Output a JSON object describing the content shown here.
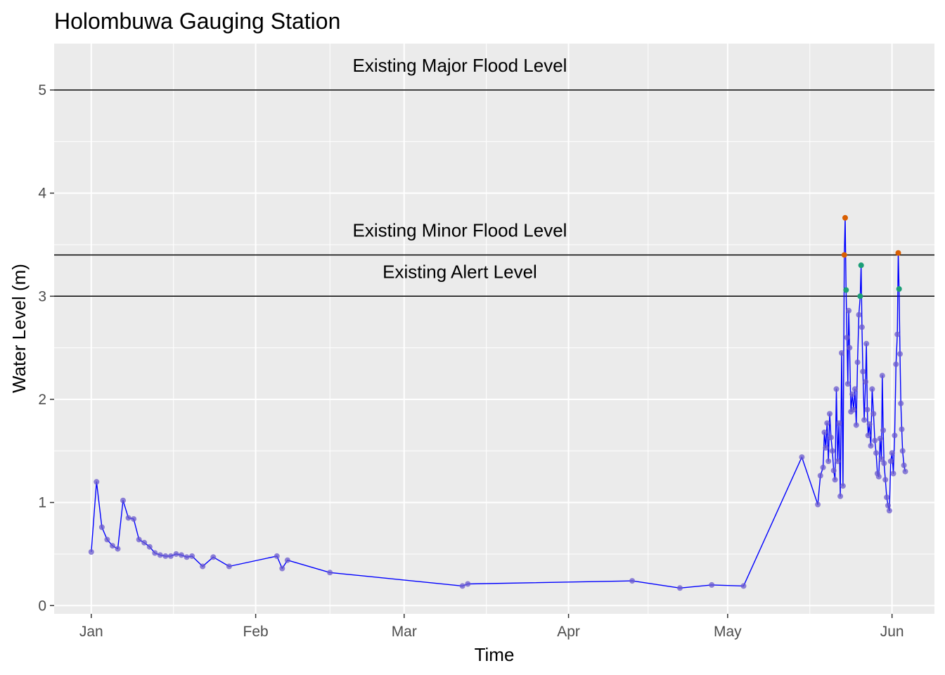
{
  "chart_data": {
    "type": "line",
    "title": "Holombuwa Gauging Station",
    "xlabel": "Time",
    "ylabel": "Water Level (m)",
    "x_ticks": [
      "Jan",
      "Feb",
      "Mar",
      "Apr",
      "May",
      "Jun"
    ],
    "x_tick_dates": [
      "2021-01-01",
      "2021-02-01",
      "2021-03-01",
      "2021-04-01",
      "2021-05-01",
      "2021-06-01"
    ],
    "xlim": [
      "2020-12-25",
      "2021-06-09"
    ],
    "y_ticks": [
      0,
      1,
      2,
      3,
      4,
      5
    ],
    "ylim": [
      -0.08,
      5.45
    ],
    "grid": true,
    "background": "#ebebeb",
    "line_color": "#0000ff",
    "point_color": "#6a5acd",
    "reference_lines": [
      {
        "label": "Existing Major Flood Level",
        "y": 5.0
      },
      {
        "label": "Existing Minor Flood Level",
        "y": 3.4
      },
      {
        "label": "Existing Alert Level",
        "y": 3.0
      }
    ],
    "highlight_colors": {
      "above_minor": "#d95f02",
      "above_alert": "#1b9e77"
    },
    "series": [
      {
        "points": [
          [
            "2021-01-01",
            0.52
          ],
          [
            "2021-01-02",
            1.2
          ],
          [
            "2021-01-03",
            0.76
          ],
          [
            "2021-01-04",
            0.64
          ],
          [
            "2021-01-05",
            0.58
          ],
          [
            "2021-01-06",
            0.55
          ],
          [
            "2021-01-07",
            1.02
          ],
          [
            "2021-01-08",
            0.85
          ],
          [
            "2021-01-09",
            0.84
          ],
          [
            "2021-01-10",
            0.64
          ],
          [
            "2021-01-11",
            0.61
          ],
          [
            "2021-01-12",
            0.57
          ],
          [
            "2021-01-13",
            0.51
          ],
          [
            "2021-01-14",
            0.49
          ],
          [
            "2021-01-15",
            0.48
          ],
          [
            "2021-01-16",
            0.48
          ],
          [
            "2021-01-17",
            0.5
          ],
          [
            "2021-01-18",
            0.49
          ],
          [
            "2021-01-19",
            0.47
          ],
          [
            "2021-01-20",
            0.48
          ],
          [
            "2021-01-22",
            0.38
          ],
          [
            "2021-01-24",
            0.47
          ],
          [
            "2021-01-27",
            0.38
          ],
          [
            "2021-02-05",
            0.48
          ],
          [
            "2021-02-06",
            0.36
          ],
          [
            "2021-02-07",
            0.44
          ],
          [
            "2021-02-15",
            0.32
          ],
          [
            "2021-03-12",
            0.19
          ],
          [
            "2021-03-13",
            0.21
          ],
          [
            "2021-04-13",
            0.24
          ],
          [
            "2021-04-22",
            0.17
          ],
          [
            "2021-04-28",
            0.2
          ],
          [
            "2021-05-04",
            0.19
          ],
          [
            "2021-05-15",
            1.44
          ],
          [
            "2021-05-18",
            0.98
          ],
          [
            "2021-05-18T12:00",
            1.26
          ],
          [
            "2021-05-19",
            1.34
          ],
          [
            "2021-05-19T06:00",
            1.68
          ],
          [
            "2021-05-19T12:00",
            1.53
          ],
          [
            "2021-05-19T18:00",
            1.77
          ],
          [
            "2021-05-20",
            1.4
          ],
          [
            "2021-05-20T06:00",
            1.86
          ],
          [
            "2021-05-20T12:00",
            1.63
          ],
          [
            "2021-05-20T18:00",
            1.5
          ],
          [
            "2021-05-21",
            1.31
          ],
          [
            "2021-05-21T06:00",
            1.22
          ],
          [
            "2021-05-21T12:00",
            2.1
          ],
          [
            "2021-05-21T18:00",
            1.4
          ],
          [
            "2021-05-22",
            1.77
          ],
          [
            "2021-05-22T06:00",
            1.06
          ],
          [
            "2021-05-22T12:00",
            2.45
          ],
          [
            "2021-05-22T18:00",
            1.16
          ],
          [
            "2021-05-23",
            3.4
          ],
          [
            "2021-05-23T04:00",
            3.76
          ],
          [
            "2021-05-23T08:00",
            3.06
          ],
          [
            "2021-05-23T12:00",
            2.6
          ],
          [
            "2021-05-23T16:00",
            2.15
          ],
          [
            "2021-05-23T20:00",
            2.86
          ],
          [
            "2021-05-24",
            2.5
          ],
          [
            "2021-05-24T06:00",
            1.88
          ],
          [
            "2021-05-24T12:00",
            2.05
          ],
          [
            "2021-05-24T18:00",
            1.9
          ],
          [
            "2021-05-25",
            2.1
          ],
          [
            "2021-05-25T06:00",
            1.75
          ],
          [
            "2021-05-25T12:00",
            2.36
          ],
          [
            "2021-05-25T18:00",
            2.82
          ],
          [
            "2021-05-26",
            3.0
          ],
          [
            "2021-05-26T04:00",
            3.3
          ],
          [
            "2021-05-26T08:00",
            2.7
          ],
          [
            "2021-05-26T12:00",
            2.27
          ],
          [
            "2021-05-26T18:00",
            1.8
          ],
          [
            "2021-05-27",
            2.17
          ],
          [
            "2021-05-27T04:00",
            2.54
          ],
          [
            "2021-05-27T08:00",
            1.9
          ],
          [
            "2021-05-27T12:00",
            1.65
          ],
          [
            "2021-05-27T18:00",
            1.76
          ],
          [
            "2021-05-28",
            1.55
          ],
          [
            "2021-05-28T06:00",
            2.1
          ],
          [
            "2021-05-28T12:00",
            1.86
          ],
          [
            "2021-05-28T18:00",
            1.6
          ],
          [
            "2021-05-29",
            1.48
          ],
          [
            "2021-05-29T06:00",
            1.28
          ],
          [
            "2021-05-29T12:00",
            1.25
          ],
          [
            "2021-05-29T18:00",
            1.62
          ],
          [
            "2021-05-30",
            1.42
          ],
          [
            "2021-05-30T04:00",
            2.23
          ],
          [
            "2021-05-30T08:00",
            1.7
          ],
          [
            "2021-05-30T12:00",
            1.38
          ],
          [
            "2021-05-30T18:00",
            1.22
          ],
          [
            "2021-05-31",
            1.05
          ],
          [
            "2021-05-31T06:00",
            0.97
          ],
          [
            "2021-05-31T12:00",
            0.92
          ],
          [
            "2021-05-31T18:00",
            1.4
          ],
          [
            "2021-06-01",
            1.48
          ],
          [
            "2021-06-01T06:00",
            1.28
          ],
          [
            "2021-06-01T12:00",
            1.65
          ],
          [
            "2021-06-01T18:00",
            2.34
          ],
          [
            "2021-06-02",
            2.63
          ],
          [
            "2021-06-02T04:00",
            3.42
          ],
          [
            "2021-06-02T08:00",
            3.07
          ],
          [
            "2021-06-02T12:00",
            2.44
          ],
          [
            "2021-06-02T16:00",
            1.96
          ],
          [
            "2021-06-02T20:00",
            1.71
          ],
          [
            "2021-06-03",
            1.5
          ],
          [
            "2021-06-03T06:00",
            1.36
          ],
          [
            "2021-06-03T12:00",
            1.3
          ]
        ]
      }
    ]
  }
}
